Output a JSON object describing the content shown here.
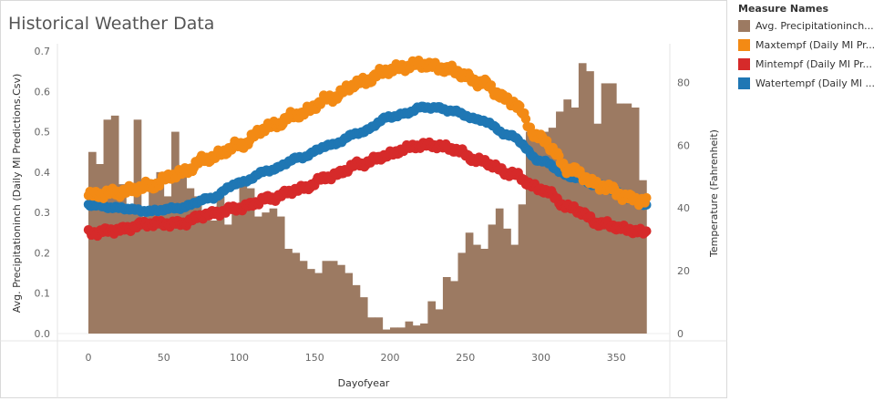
{
  "title": "Historical Weather Data",
  "legend": {
    "title": "Measure Names",
    "items": [
      {
        "label": "Avg. Precipitationinch...",
        "color": "#9c7a62"
      },
      {
        "label": "Maxtempf (Daily MI Pr...",
        "color": "#f38a14"
      },
      {
        "label": "Mintempf (Daily MI Pr...",
        "color": "#d62a2a"
      },
      {
        "label": "Watertempf (Daily MI ...",
        "color": "#1f77b4"
      }
    ]
  },
  "chart_data": {
    "type": "bar+scatter (dual axis)",
    "xlabel": "Dayofyear",
    "ylabel_left": "Avg. Precipitationinch (Daily MI Predictions.Csv)",
    "ylabel_right": "Temperature (Fahrenheit)",
    "xlim": [
      -20,
      390
    ],
    "ylim_left": [
      0,
      0.7
    ],
    "ylim_right": [
      0,
      90
    ],
    "x_ticks": [
      0,
      50,
      100,
      150,
      200,
      250,
      300,
      350
    ],
    "y_ticks_left": [
      "0.0",
      "0.1",
      "0.2",
      "0.3",
      "0.4",
      "0.5",
      "0.6",
      "0.7"
    ],
    "y_ticks_right": [
      "0",
      "20",
      "40",
      "60",
      "80"
    ],
    "precipitation": {
      "name": "Avg. Precipitationinch",
      "color": "#9c7a62",
      "day_start": [
        0,
        5,
        10,
        15,
        20,
        25,
        30,
        35,
        40,
        45,
        50,
        55,
        60,
        65,
        70,
        75,
        80,
        85,
        90,
        95,
        100,
        105,
        110,
        115,
        120,
        125,
        130,
        135,
        140,
        145,
        150,
        155,
        160,
        165,
        170,
        175,
        180,
        185,
        190,
        195,
        200,
        205,
        210,
        215,
        220,
        225,
        230,
        235,
        240,
        245,
        250,
        255,
        260,
        265,
        270,
        275,
        280,
        285,
        290,
        295,
        300,
        305,
        310,
        315,
        320,
        325,
        330,
        335,
        340,
        345,
        350,
        355,
        360,
        365
      ],
      "day_end": [
        5,
        10,
        15,
        20,
        25,
        30,
        35,
        40,
        45,
        50,
        55,
        60,
        65,
        70,
        75,
        80,
        85,
        90,
        95,
        100,
        105,
        110,
        115,
        120,
        125,
        130,
        135,
        140,
        145,
        150,
        155,
        160,
        165,
        170,
        175,
        180,
        185,
        190,
        195,
        200,
        205,
        210,
        215,
        220,
        225,
        230,
        235,
        240,
        245,
        250,
        255,
        260,
        265,
        270,
        275,
        280,
        285,
        290,
        295,
        300,
        305,
        310,
        315,
        320,
        325,
        330,
        335,
        340,
        345,
        350,
        355,
        360,
        365,
        370
      ],
      "values": [
        0.45,
        0.42,
        0.53,
        0.54,
        0.37,
        0.31,
        0.53,
        0.29,
        0.38,
        0.4,
        0.34,
        0.5,
        0.41,
        0.36,
        0.34,
        0.3,
        0.28,
        0.34,
        0.27,
        0.32,
        0.37,
        0.36,
        0.29,
        0.3,
        0.31,
        0.29,
        0.21,
        0.2,
        0.18,
        0.16,
        0.15,
        0.18,
        0.18,
        0.17,
        0.15,
        0.12,
        0.09,
        0.04,
        0.04,
        0.01,
        0.015,
        0.015,
        0.03,
        0.02,
        0.025,
        0.08,
        0.06,
        0.14,
        0.13,
        0.2,
        0.25,
        0.22,
        0.21,
        0.27,
        0.31,
        0.26,
        0.22,
        0.32,
        0.5,
        0.48,
        0.5,
        0.51,
        0.55,
        0.58,
        0.56,
        0.67,
        0.65,
        0.52,
        0.62,
        0.62,
        0.57,
        0.57,
        0.56,
        0.38
      ]
    },
    "series": [
      {
        "name": "Maxtempf",
        "color": "#f38a14",
        "x": [
          0,
          20,
          40,
          60,
          80,
          100,
          120,
          140,
          160,
          180,
          200,
          210,
          220,
          230,
          240,
          260,
          280,
          300,
          320,
          340,
          360,
          370
        ],
        "y": [
          44,
          45,
          47,
          51,
          56,
          60,
          66,
          70,
          75,
          80,
          84,
          85,
          86,
          85,
          84,
          80,
          74,
          62,
          52,
          47,
          43,
          42
        ]
      },
      {
        "name": "Mintempf",
        "color": "#d62a2a",
        "x": [
          0,
          20,
          40,
          60,
          80,
          100,
          120,
          140,
          160,
          180,
          200,
          210,
          220,
          230,
          240,
          260,
          280,
          300,
          320,
          340,
          360,
          370
        ],
        "y": [
          32,
          33,
          35,
          35,
          38,
          40,
          43,
          46,
          50,
          54,
          57,
          59,
          60,
          60,
          59,
          55,
          51,
          46,
          40,
          35,
          33,
          32
        ]
      },
      {
        "name": "Watertempf",
        "color": "#1f77b4",
        "x": [
          0,
          20,
          40,
          60,
          80,
          100,
          120,
          140,
          160,
          180,
          200,
          210,
          220,
          230,
          240,
          260,
          280,
          300,
          320,
          340,
          360,
          370
        ],
        "y": [
          41,
          40,
          39,
          40,
          43,
          48,
          52,
          56,
          60,
          64,
          69,
          70,
          72,
          72,
          71,
          68,
          63,
          55,
          50,
          47,
          43,
          41
        ]
      }
    ]
  }
}
